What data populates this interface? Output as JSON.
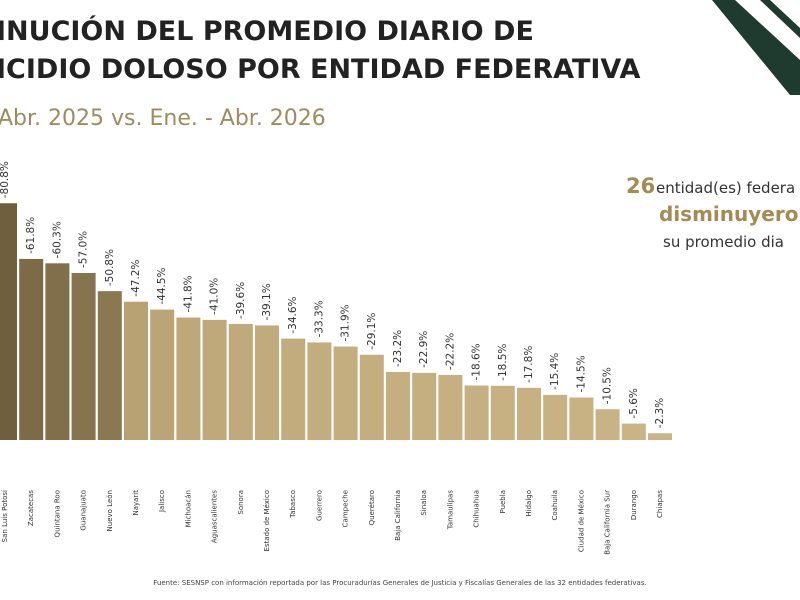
{
  "chart_data": {
    "type": "bar",
    "title_lines": [
      "INUCIÓN DEL PROMEDIO DIARIO DE",
      "ICIDIO DOLOSO POR ENTIDAD FEDERATIVA"
    ],
    "subtitle": "Abr. 2025 vs. Ene. - Abr. 2026",
    "callout": {
      "count": "26",
      "line1": "entidad(es) federa",
      "line2": "disminuyero",
      "line3": "su promedio dia"
    },
    "categories": [
      "San Luis Potosí",
      "Zacatecas",
      "Quintana Roo",
      "Guanajuato",
      "Nuevo León",
      "Nayarit",
      "Jalisco",
      "Michoacán",
      "Aguascalientes",
      "Sonora",
      "Estado de México",
      "Tabasco",
      "Guerrero",
      "Campeche",
      "Querétaro",
      "Baja California",
      "Sinaloa",
      "Tamaulipas",
      "Chihuahua",
      "Puebla",
      "Hidalgo",
      "Coahuila",
      "Ciudad de México",
      "Baja California Sur",
      "Durango",
      "Chiapas"
    ],
    "values": [
      -80.8,
      -61.8,
      -60.3,
      -57.0,
      -50.8,
      -47.2,
      -44.5,
      -41.8,
      -41.0,
      -39.6,
      -39.1,
      -34.6,
      -33.3,
      -31.9,
      -29.1,
      -23.2,
      -22.9,
      -22.2,
      -18.6,
      -18.5,
      -17.8,
      -15.4,
      -14.5,
      -10.5,
      -5.6,
      -2.3
    ],
    "value_labels": [
      "-80.8%",
      "-61.8%",
      "-60.3%",
      "-57.0%",
      "-50.8%",
      "-47.2%",
      "-44.5%",
      "-41.8%",
      "-41.0%",
      "-39.6%",
      "-39.1%",
      "-34.6%",
      "-33.3%",
      "-31.9%",
      "-29.1%",
      "-23.2%",
      "-22.9%",
      "-22.2%",
      "-18.6%",
      "-18.5%",
      "-17.8%",
      "-15.4%",
      "-14.5%",
      "-10.5%",
      "-5.6%",
      "-2.3%"
    ],
    "colors": [
      "#6f5f3c",
      "#7c6b46",
      "#806f4a",
      "#85744d",
      "#8a7850",
      "#b8a274",
      "#bba577",
      "#bea879",
      "#bfa97a",
      "#c0aa7b",
      "#c1ab7c",
      "#c2ac7d",
      "#c3ad7e",
      "#c4ae80",
      "#c4ae80",
      "#c5af81",
      "#c5af81",
      "#c6b082",
      "#c6b082",
      "#c7b183",
      "#c7b183",
      "#c8b284",
      "#c8b284",
      "#c9b385",
      "#cab486",
      "#cbb587"
    ],
    "source": "Fuente: SESNSP con información reportada por las Procuradurías Generales de Justicia y Fiscalías Generales de las 32 entidades federativas."
  }
}
